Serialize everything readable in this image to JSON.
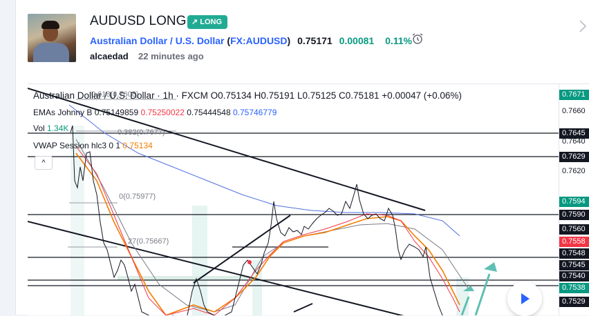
{
  "idea": {
    "title": "AUDUSD LONG",
    "badge": "LONG",
    "symbol_name": "Australian Dollar / U.S. Dollar",
    "symbol_code": "FX:AUDUSD",
    "open_paren": "(",
    "close_paren": ")",
    "price": "0.75171",
    "change": "0.00081",
    "change_pct": "0.11%",
    "author": "alcaedad",
    "time_ago": "22 minutes ago"
  },
  "legend": {
    "main": "Australian Dollar / U.S. Dollar · 1h · FXCM",
    "ohlc": "O0.75134 H0.75191 L0.75125 C0.75181 +0.00047 (+0.06%)",
    "emas_name": "EMAs Johnny B",
    "ema1": "0.75149859",
    "ema2": "0.75250022",
    "ema3": "0.75444548",
    "ema4": "0.75746779",
    "vol_name": "Vol",
    "vol_value": "1.34K",
    "vwap_name": "VWAP Session hlc3 0 1",
    "vwap_value": "0.75134",
    "collapse": "^"
  },
  "fib_labels": {
    "top": "0.618(0.7608)",
    "mid": "0.382(0.7677)",
    "zero": "0(0.75977)",
    "f27": "27(0.75667)"
  },
  "price_axis": {
    "tags": [
      {
        "text": "0.7671",
        "bg": "#089981"
      },
      {
        "text": "0.7645",
        "bg": "#131722"
      },
      {
        "text": "0.7629",
        "bg": "#131722"
      },
      {
        "text": "0.7594",
        "bg": "#089981"
      },
      {
        "text": "0.7590",
        "bg": "#131722"
      },
      {
        "text": "0.7560",
        "bg": "#131722"
      },
      {
        "text": "0.7558",
        "bg": "#f23645"
      },
      {
        "text": "0.7548",
        "bg": "#131722"
      },
      {
        "text": "0.7545",
        "bg": "#131722"
      },
      {
        "text": "0.7540",
        "bg": "#131722"
      },
      {
        "text": "0.7538",
        "bg": "#089981"
      },
      {
        "text": "0.7529",
        "bg": "#131722"
      }
    ],
    "ticks": [
      "0.7660",
      "0.7640",
      "0.7620"
    ]
  },
  "colors": {
    "accent": "#2962ff",
    "up": "#089981",
    "down": "#f23645",
    "ema_orange": "#f57c00",
    "ema_blue": "#2962ff"
  },
  "icons": {
    "alarm": "alarm-clock-icon",
    "next": "chevron-right-icon",
    "play": "play-icon",
    "arrow_up": "arrow-up-right-icon"
  }
}
